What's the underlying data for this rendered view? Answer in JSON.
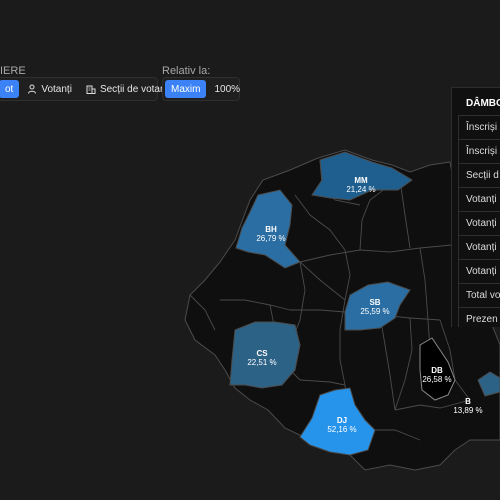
{
  "filters": {
    "group_label": "IERE",
    "buttons": [
      {
        "label": "ot",
        "active": true,
        "icon": "none"
      },
      {
        "label": "Votanți",
        "active": false,
        "icon": "person-icon"
      },
      {
        "label": "Secții de votare",
        "active": false,
        "icon": "building-icon"
      }
    ]
  },
  "relative": {
    "label": "Relativ la:",
    "options": [
      {
        "label": "Maxim",
        "active": true
      },
      {
        "label": "100%",
        "active": false
      }
    ]
  },
  "map": {
    "counties": [
      {
        "code": "MM",
        "value": "21,24 %",
        "color": "#1f5f8f"
      },
      {
        "code": "BH",
        "value": "26,79 %",
        "color": "#2a6ea3"
      },
      {
        "code": "SB",
        "value": "25,59 %",
        "color": "#2a6ea3"
      },
      {
        "code": "CS",
        "value": "22,51 %",
        "color": "#2d6287"
      },
      {
        "code": "DJ",
        "value": "52,16 %",
        "color": "#2794ec"
      },
      {
        "code": "DB",
        "value": "26,58 %",
        "color": "#000000"
      },
      {
        "code": "B",
        "value": "13,89 %",
        "color": "#2d6287"
      }
    ]
  },
  "panel": {
    "title": "DÂMBO",
    "rows": [
      "Înscriși",
      "Înscriși",
      "Secții d",
      "Votanți",
      "Votanți",
      "Votanți",
      "Votanți",
      "Total vo",
      "Prezen"
    ]
  },
  "colors": {
    "background": "#1b1b1b",
    "county_default": "#0f0f0f",
    "border": "#4b4b4b",
    "accent": "#3b82f6"
  }
}
